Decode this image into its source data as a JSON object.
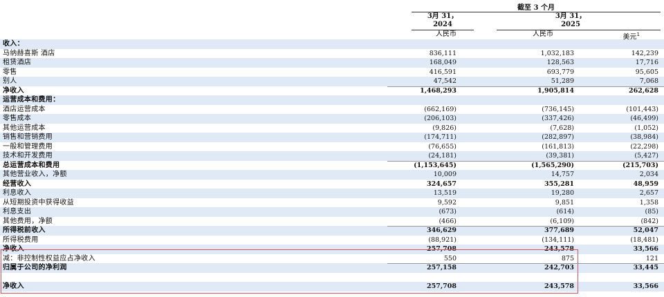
{
  "header": {
    "period": "截至 3 个月",
    "col1_date": "3月 31，",
    "col1_year": "2024",
    "col2_date": "3月 31，",
    "col2_year": "2025",
    "currency1": "人民币",
    "currency2": "人民币",
    "currency3": "美元",
    "currency3_note": "1"
  },
  "rows": [
    {
      "label": "收入：",
      "v1": "",
      "v2": "",
      "v3": "",
      "bold": true,
      "alt": true
    },
    {
      "label": "马纳赫喜斯 酒店",
      "v1": "836,111",
      "v2": "1,032,183",
      "v3": "142,239",
      "bold": false,
      "alt": false
    },
    {
      "label": "租赁酒店",
      "v1": "168,049",
      "v2": "128,563",
      "v3": "17,716",
      "bold": false,
      "alt": true
    },
    {
      "label": "零售",
      "v1": "416,591",
      "v2": "693,779",
      "v3": "95,605",
      "bold": false,
      "alt": false
    },
    {
      "label": "别人",
      "v1": "47,542",
      "v2": "51,289",
      "v3": "7,068",
      "bold": false,
      "alt": true
    },
    {
      "label": "净收入",
      "v1": "1,468,293",
      "v2": "1,905,814",
      "v3": "262,628",
      "bold": true,
      "alt": false
    },
    {
      "label": "运营成本和费用：",
      "v1": "",
      "v2": "",
      "v3": "",
      "bold": true,
      "alt": true
    },
    {
      "label": "酒店运营成本",
      "v1": "(662,169)",
      "v2": "(736,145)",
      "v3": "(101,443)",
      "bold": false,
      "alt": false
    },
    {
      "label": "零售成本",
      "v1": "(206,103)",
      "v2": "(337,426)",
      "v3": "(46,499)",
      "bold": false,
      "alt": true
    },
    {
      "label": "其他运营成本",
      "v1": "(9,826)",
      "v2": "(7,628)",
      "v3": "(1,052)",
      "bold": false,
      "alt": false
    },
    {
      "label": "销售和营销费用",
      "v1": "(174,711)",
      "v2": "(282,897)",
      "v3": "(38,984)",
      "bold": false,
      "alt": true
    },
    {
      "label": "一般和管理费用",
      "v1": "(76,655)",
      "v2": "(161,813)",
      "v3": "(22,298)",
      "bold": false,
      "alt": false
    },
    {
      "label": "技术和开发费用",
      "v1": "(24,181)",
      "v2": "(39,381)",
      "v3": "(5,427)",
      "bold": false,
      "alt": true
    },
    {
      "label": "总运营成本和费用",
      "v1": "(1,153,645)",
      "v2": "(1,565,290)",
      "v3": "(215,703)",
      "bold": true,
      "alt": false
    },
    {
      "label": "其他营业收入，净额",
      "v1": "10,009",
      "v2": "14,757",
      "v3": "2,034",
      "bold": false,
      "alt": true
    },
    {
      "label": "经营收入",
      "v1": "324,657",
      "v2": "355,281",
      "v3": "48,959",
      "bold": true,
      "alt": false
    },
    {
      "label": "利息收入",
      "v1": "13,519",
      "v2": "19,280",
      "v3": "2,657",
      "bold": false,
      "alt": true
    },
    {
      "label": "从短期投资中获得收益",
      "v1": "9,592",
      "v2": "9,851",
      "v3": "1,358",
      "bold": false,
      "alt": false
    },
    {
      "label": "利息支出",
      "v1": "(673)",
      "v2": "(614)",
      "v3": "(85)",
      "bold": false,
      "alt": true
    },
    {
      "label": "其他费用，净额",
      "v1": "(466)",
      "v2": "(6,109)",
      "v3": "(842)",
      "bold": false,
      "alt": false
    },
    {
      "label": "所得税前收入",
      "v1": "346,629",
      "v2": "377,689",
      "v3": "52,047",
      "bold": true,
      "alt": true
    },
    {
      "label": "所得税费用",
      "v1": "(88,921)",
      "v2": "(134,111)",
      "v3": "(18,481)",
      "bold": false,
      "alt": false
    },
    {
      "label": "净收入",
      "v1": "257,708",
      "v2": "243,578",
      "v3": "33,566",
      "bold": true,
      "alt": true
    },
    {
      "label": "减：非控制性权益应占净收入",
      "v1": "550",
      "v2": "875",
      "v3": "121",
      "bold": false,
      "alt": false
    },
    {
      "label": "归属于公司的净利润",
      "v1": "257,158",
      "v2": "242,703",
      "v3": "33,445",
      "bold": true,
      "alt": true
    },
    {
      "label": "",
      "v1": "",
      "v2": "",
      "v3": "",
      "bold": false,
      "alt": false
    },
    {
      "label": "净收入",
      "v1": "257,708",
      "v2": "243,578",
      "v3": "33,566",
      "bold": true,
      "alt": true
    }
  ]
}
